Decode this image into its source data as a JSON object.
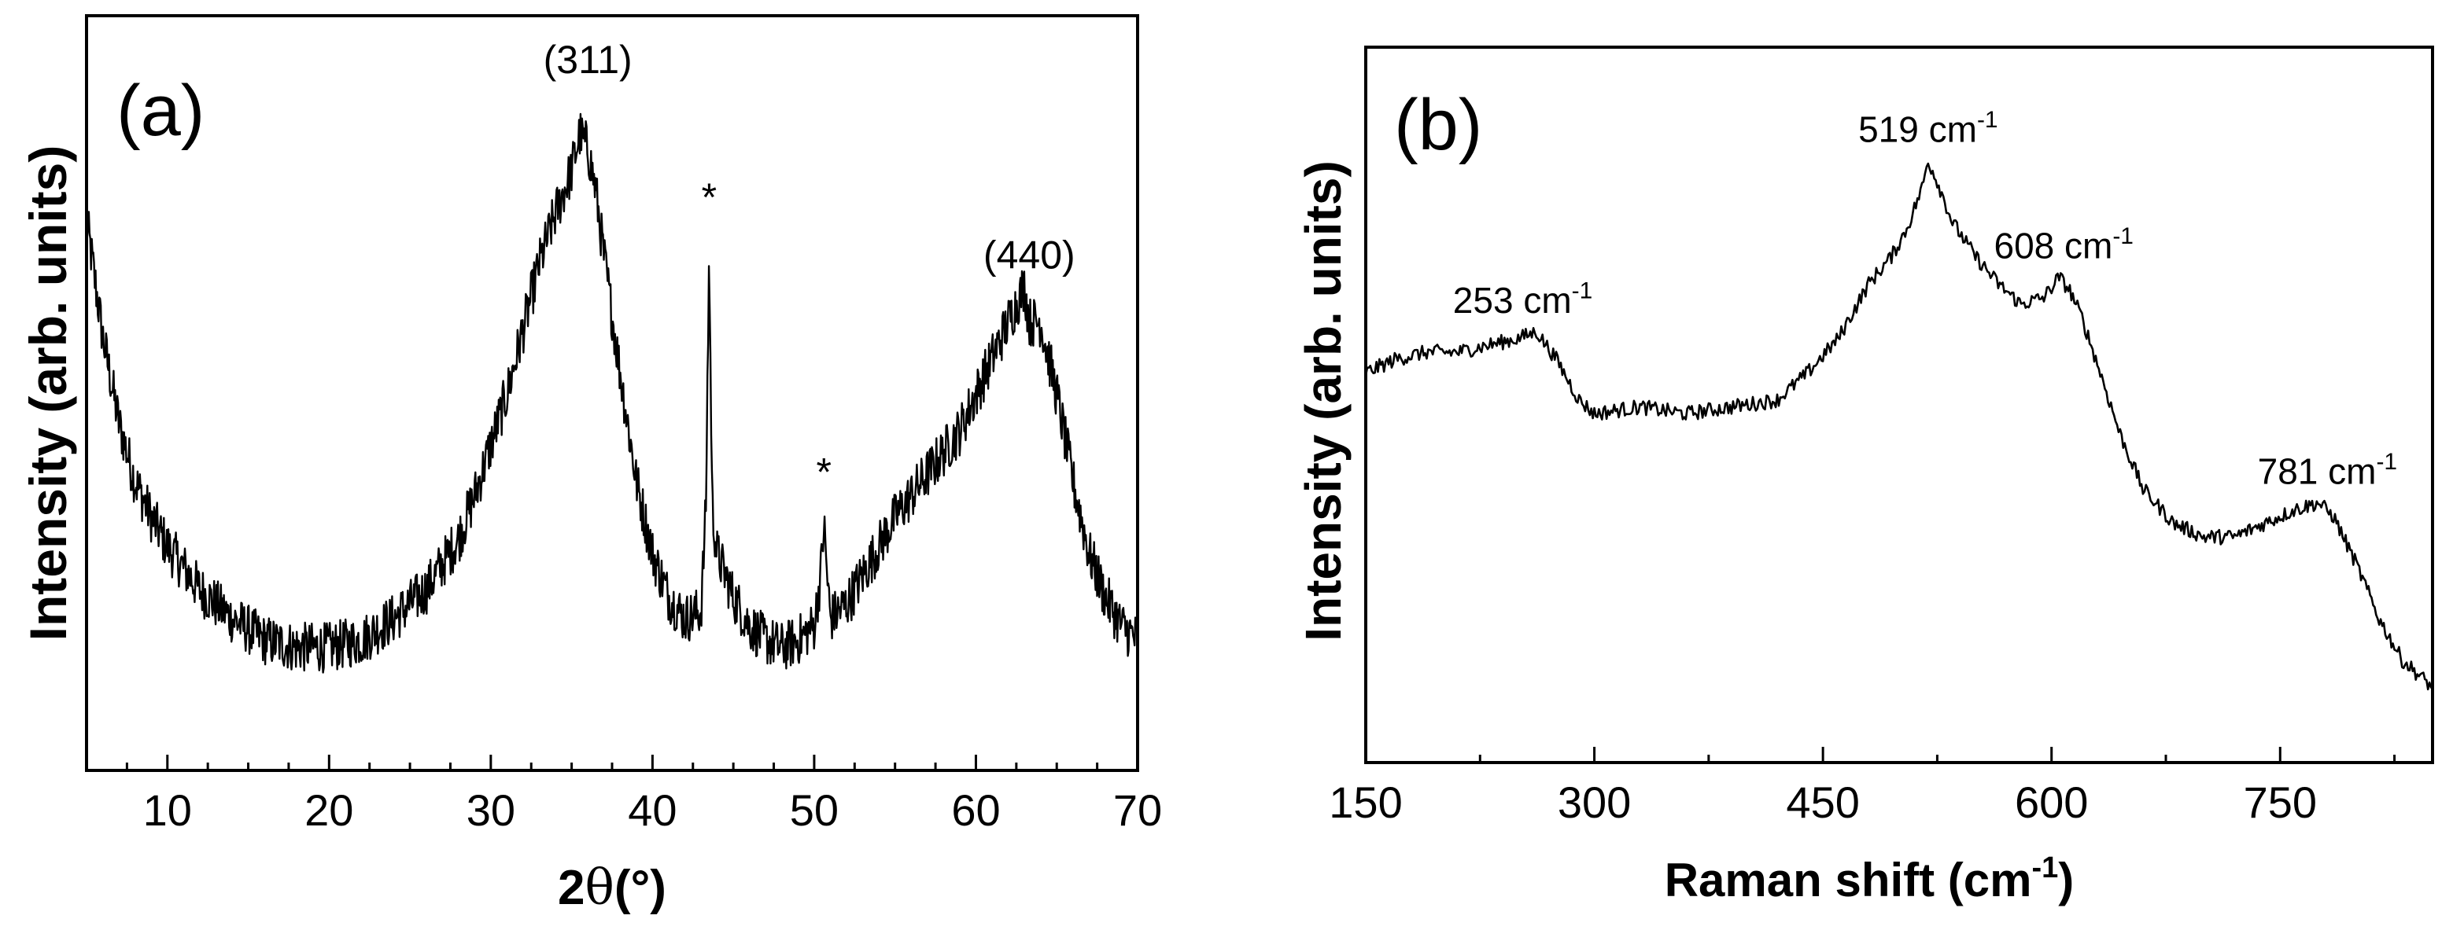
{
  "chart_data": [
    {
      "type": "line",
      "panel_label": "(a)",
      "xlabel_main": "2",
      "xlabel_theta": "θ",
      "xlabel_unit": "(°)",
      "ylabel": "Intensity (arb. units)",
      "xlim": [
        5,
        70
      ],
      "ylim": [
        0,
        100
      ],
      "xticks": [
        10,
        20,
        30,
        40,
        50,
        60,
        70
      ],
      "xtick_labels": [
        "10",
        "20",
        "30",
        "40",
        "50",
        "60",
        "70"
      ],
      "x_minor_step": 2.5,
      "series_description": "XRD diffractogram: broad peaks at 2θ ≈ 35.8 (311) and 63.2 (440), sharp impurity peaks at 43.4 and 50.6",
      "series": [
        {
          "name": "XRD pattern",
          "x": [
            5,
            6,
            7,
            8,
            9,
            10,
            12,
            14,
            16,
            18,
            20,
            22,
            24,
            26,
            28,
            29,
            30,
            31,
            32,
            33,
            34,
            35,
            35.5,
            36,
            36.5,
            37,
            38,
            39,
            40,
            41,
            42,
            43,
            43.3,
            43.5,
            43.7,
            44,
            45,
            46,
            47,
            48,
            49,
            50,
            50.4,
            50.6,
            50.8,
            51,
            52,
            53,
            54,
            55,
            56,
            57,
            58,
            59,
            60,
            61,
            62,
            63,
            63.3,
            64,
            65,
            66,
            67,
            68,
            69,
            70
          ],
          "y": [
            76,
            60,
            48,
            40,
            35,
            31,
            25,
            21,
            18,
            17,
            17,
            18,
            21,
            25,
            32,
            38,
            45,
            52,
            61,
            70,
            77,
            83,
            88,
            86,
            80,
            71,
            55,
            40,
            30,
            24,
            21,
            22,
            36,
            71,
            36,
            30,
            24,
            20,
            18,
            17,
            18,
            20,
            27,
            34,
            27,
            21,
            23,
            27,
            31,
            35,
            38,
            41,
            44,
            47,
            52,
            57,
            62,
            67,
            62,
            62,
            52,
            40,
            30,
            24,
            20,
            18
          ]
        }
      ],
      "annotations": [
        {
          "text": "(311)",
          "x": 36,
          "y": 94
        },
        {
          "text": "*",
          "x": 43.5,
          "y": 75
        },
        {
          "text": "*",
          "x": 50.6,
          "y": 37
        },
        {
          "text": "(440)",
          "x": 63.3,
          "y": 67
        }
      ]
    },
    {
      "type": "line",
      "panel_label": "(b)",
      "xlabel": "Raman shift (cm",
      "xlabel_sup": "-1",
      "xlabel_close": ")",
      "ylabel": "Intensity (arb. units)",
      "xlim": [
        150,
        850
      ],
      "ylim": [
        0,
        100
      ],
      "xticks": [
        150,
        300,
        450,
        600,
        750
      ],
      "xtick_labels": [
        "150",
        "300",
        "450",
        "600",
        "750"
      ],
      "x_minor_step": 75,
      "series_description": "Raman spectrum with bands at 253, 519, 608 and 781 cm-1",
      "series": [
        {
          "name": "Raman spectrum",
          "x": [
            150,
            170,
            190,
            210,
            230,
            250,
            262,
            275,
            290,
            300,
            330,
            360,
            390,
            420,
            440,
            460,
            480,
            495,
            505,
            515,
            519,
            525,
            535,
            550,
            565,
            580,
            595,
            605,
            612,
            620,
            632,
            645,
            660,
            680,
            700,
            720,
            740,
            760,
            775,
            785,
            800,
            815,
            830,
            850
          ],
          "y": [
            57,
            59,
            60,
            60,
            61,
            62,
            63,
            59,
            53,
            51,
            52,
            51,
            52,
            53,
            57,
            62,
            70,
            74,
            78,
            84,
            88,
            85,
            79,
            74,
            70,
            67,
            68,
            71,
            69,
            65,
            57,
            48,
            40,
            35,
            33,
            33,
            35,
            37,
            38,
            36,
            29,
            21,
            15,
            11
          ]
        }
      ],
      "annotations": [
        {
          "text": "253 cm",
          "sup": "-1",
          "x": 253,
          "y": 63
        },
        {
          "text": "519 cm",
          "sup": "-1",
          "x": 519,
          "y": 88
        },
        {
          "text": "608 cm",
          "sup": "-1",
          "x": 608,
          "y": 71
        },
        {
          "text": "781 cm",
          "sup": "-1",
          "x": 781,
          "y": 38
        }
      ]
    }
  ]
}
